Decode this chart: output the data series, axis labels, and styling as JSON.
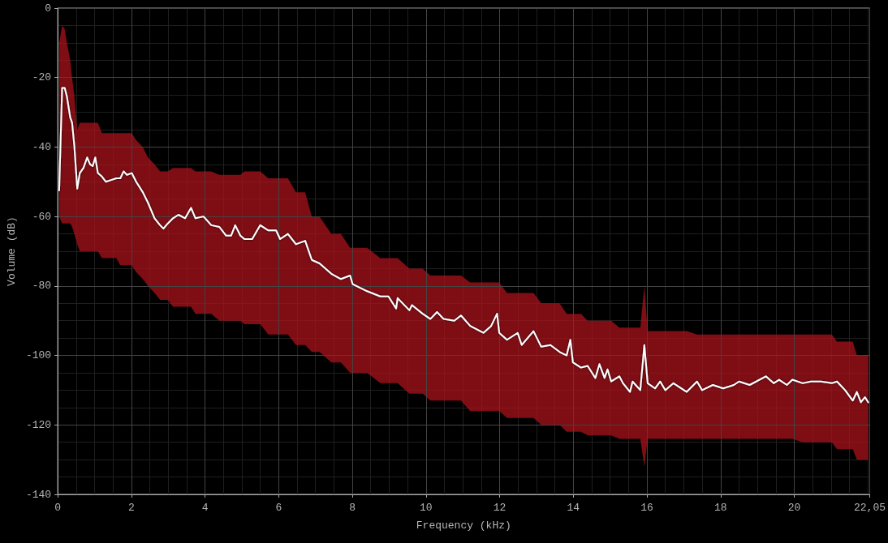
{
  "chart_data": {
    "type": "line",
    "xlabel": "Frequency (kHz)",
    "ylabel": "Volume (dB)",
    "x": [
      0.04,
      0.12,
      0.19,
      0.25,
      0.34,
      0.39,
      0.45,
      0.53,
      0.6,
      0.7,
      0.8,
      0.88,
      0.95,
      1.02,
      1.09,
      1.2,
      1.31,
      1.45,
      1.59,
      1.7,
      1.79,
      1.88,
      2.01,
      2.13,
      2.31,
      2.45,
      2.63,
      2.78,
      2.87,
      2.99,
      3.13,
      3.28,
      3.46,
      3.62,
      3.74,
      3.96,
      4.17,
      4.39,
      4.57,
      4.71,
      4.82,
      4.96,
      5.07,
      5.28,
      5.5,
      5.72,
      5.93,
      6.04,
      6.25,
      6.47,
      6.72,
      6.9,
      7.11,
      7.43,
      7.69,
      7.94,
      8.01,
      8.4,
      8.76,
      8.98,
      9.19,
      9.23,
      9.55,
      9.62,
      9.91,
      10.12,
      10.3,
      10.48,
      10.77,
      10.95,
      11.2,
      11.56,
      11.77,
      11.93,
      11.99,
      12.2,
      12.49,
      12.6,
      12.92,
      13.13,
      13.38,
      13.63,
      13.82,
      13.92,
      13.99,
      14.21,
      14.39,
      14.6,
      14.71,
      14.85,
      14.93,
      15.03,
      15.25,
      15.35,
      15.54,
      15.61,
      15.82,
      15.93,
      16.02,
      16.22,
      16.36,
      16.5,
      16.72,
      17.08,
      17.36,
      17.5,
      17.79,
      18.07,
      18.36,
      18.5,
      18.79,
      19.23,
      19.44,
      19.59,
      19.8,
      19.95,
      20.23,
      20.45,
      20.73,
      21.02,
      21.16,
      21.38,
      21.59,
      21.7,
      21.81,
      21.92,
      22.01
    ],
    "series": [
      {
        "color": "#ffffff",
        "values": [
          -52.5,
          -23,
          -23,
          -25.5,
          -31.5,
          -33,
          -39.5,
          -52,
          -47.5,
          -46,
          -43,
          -45,
          -45.5,
          -43,
          -47.5,
          -48.5,
          -50,
          -49.5,
          -49,
          -49,
          -47,
          -48,
          -47.5,
          -50,
          -53,
          -56,
          -60.5,
          -62.5,
          -63.5,
          -62,
          -60.5,
          -59.5,
          -60.5,
          -57.5,
          -60.5,
          -60,
          -62.5,
          -63,
          -65.5,
          -65.5,
          -62.5,
          -65.5,
          -66.5,
          -66.5,
          -62.5,
          -64,
          -64,
          -66.5,
          -65,
          -68,
          -67,
          -72.5,
          -73.5,
          -76.5,
          -78,
          -77,
          -79.5,
          -81.5,
          -83,
          -83,
          -86.5,
          -83.5,
          -87,
          -85.5,
          -88,
          -89.5,
          -87.5,
          -89.5,
          -90,
          -88.5,
          -91.5,
          -93.5,
          -91.5,
          -88,
          -93.5,
          -95.5,
          -93.5,
          -97,
          -93,
          -97.5,
          -97,
          -99,
          -100,
          -95.5,
          -102,
          -103.5,
          -103,
          -106.5,
          -102.5,
          -106.5,
          -104,
          -107.5,
          -106,
          -108,
          -110.5,
          -107.5,
          -110,
          -97,
          -108,
          -109.5,
          -107.5,
          -110,
          -108,
          -110.5,
          -107.5,
          -110,
          -108.5,
          -109.5,
          -108.5,
          -107.5,
          -108.5,
          -106,
          -108,
          -107,
          -108.5,
          -107,
          -108,
          -107.5,
          -107.5,
          -108,
          -107.5,
          -110,
          -113,
          -110.5,
          -113.5,
          -112,
          -113.5
        ],
        "upper": [
          -10,
          -5,
          -6,
          -10,
          -15,
          -20,
          -25,
          -35,
          -33,
          -33,
          -33,
          -33,
          -33,
          -33,
          -33,
          -36,
          -36,
          -36,
          -36,
          -36,
          -36,
          -36,
          -36,
          -38,
          -40,
          -43,
          -45,
          -47,
          -47,
          -47,
          -46,
          -46,
          -46,
          -46,
          -47,
          -47,
          -47,
          -48,
          -48,
          -48,
          -48,
          -48,
          -47,
          -47,
          -47,
          -49,
          -49,
          -49,
          -49,
          -53,
          -53,
          -60,
          -60,
          -65,
          -65,
          -69,
          -69,
          -69,
          -72,
          -72,
          -72,
          -72,
          -75,
          -75,
          -75,
          -77,
          -77,
          -77,
          -77,
          -77,
          -79,
          -79,
          -79,
          -79,
          -79,
          -82,
          -82,
          -82,
          -82,
          -85,
          -85,
          -85,
          -88,
          -88,
          -88,
          -88,
          -90,
          -90,
          -90,
          -90,
          -90,
          -90,
          -92,
          -92,
          -92,
          -92,
          -92,
          -80,
          -93,
          -93,
          -93,
          -93,
          -93,
          -93,
          -94,
          -94,
          -94,
          -94,
          -94,
          -94,
          -94,
          -94,
          -94,
          -94,
          -94,
          -94,
          -94,
          -94,
          -94,
          -94,
          -96,
          -96,
          -96,
          -100,
          -100,
          -100,
          -100
        ],
        "lower": [
          -60,
          -62,
          -62,
          -62,
          -62,
          -63,
          -65,
          -68,
          -70,
          -70,
          -70,
          -70,
          -70,
          -70,
          -70,
          -72,
          -72,
          -72,
          -72,
          -74,
          -74,
          -74,
          -74,
          -76,
          -78,
          -80,
          -82,
          -84,
          -84,
          -84,
          -86,
          -86,
          -86,
          -86,
          -88,
          -88,
          -88,
          -90,
          -90,
          -90,
          -90,
          -90,
          -91,
          -91,
          -91,
          -94,
          -94,
          -94,
          -94,
          -97,
          -97,
          -99,
          -99,
          -102,
          -102,
          -105,
          -105,
          -105,
          -108,
          -108,
          -108,
          -108,
          -111,
          -111,
          -111,
          -113,
          -113,
          -113,
          -113,
          -113,
          -116,
          -116,
          -116,
          -116,
          -116,
          -118,
          -118,
          -118,
          -118,
          -120,
          -120,
          -120,
          -122,
          -122,
          -122,
          -122,
          -123,
          -123,
          -123,
          -123,
          -123,
          -123,
          -124,
          -124,
          -124,
          -124,
          -124,
          -132,
          -124,
          -124,
          -124,
          -124,
          -124,
          -124,
          -124,
          -124,
          -124,
          -124,
          -124,
          -124,
          -124,
          -124,
          -124,
          -124,
          -124,
          -124,
          -125,
          -125,
          -125,
          -125,
          -127,
          -127,
          -127,
          -130,
          -130,
          -130,
          -130
        ]
      }
    ],
    "xlim": [
      0,
      22.05
    ],
    "xticks": [
      0,
      2,
      4,
      6,
      8,
      10,
      12,
      14,
      16,
      18,
      20,
      {
        "value": 22.05,
        "label": "22,05"
      }
    ],
    "ylim": [
      -140,
      0
    ],
    "yticks": [
      -140,
      -120,
      -100,
      -80,
      -60,
      -40,
      -20,
      0
    ],
    "grid": true,
    "marker": "none",
    "line_style": "solid"
  }
}
